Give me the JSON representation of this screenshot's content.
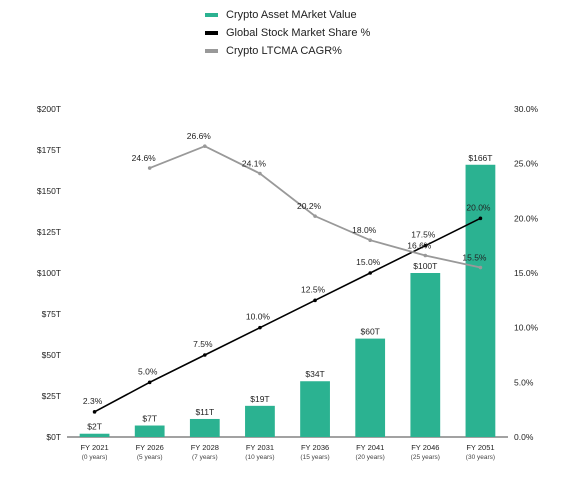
{
  "chart_data": {
    "type": "bar",
    "categories": [
      "FY 2021",
      "FY 2026",
      "FY 2028",
      "FY 2031",
      "FY 2036",
      "FY 2041",
      "FY 2046",
      "FY 2051"
    ],
    "category_sublabels": [
      "(0 years)",
      "(5 years)",
      "(7 years)",
      "(10 years)",
      "(15 years)",
      "(20 years)",
      "(25 years)",
      "(30 years)"
    ],
    "series": [
      {
        "name": "Crypto Asset MArket Value",
        "kind": "bar",
        "axis": "left",
        "color": "#2bb291",
        "values": [
          2,
          7,
          11,
          19,
          34,
          60,
          100,
          166
        ],
        "labels": [
          "$2T",
          "$7T",
          "$11T",
          "$19T",
          "$34T",
          "$60T",
          "$100T",
          "$166T"
        ]
      },
      {
        "name": "Global Stock Market Share %",
        "kind": "line",
        "axis": "right",
        "color": "#000000",
        "values": [
          2.3,
          5.0,
          7.5,
          10.0,
          12.5,
          15.0,
          17.5,
          20.0
        ],
        "labels": [
          "2.3%",
          "5.0%",
          "7.5%",
          "10.0%",
          "12.5%",
          "15.0%",
          "17.5%",
          "20.0%"
        ]
      },
      {
        "name": "Crypto LTCMA CAGR%",
        "kind": "line",
        "axis": "right",
        "color": "#999999",
        "values": [
          null,
          24.6,
          26.6,
          24.1,
          20.2,
          18.0,
          16.6,
          15.5
        ],
        "labels": [
          null,
          "24.6%",
          "26.6%",
          "24.1%",
          "20.2%",
          "18.0%",
          "16.6%",
          "15.5%"
        ]
      }
    ],
    "y_left": {
      "lim": [
        0,
        200
      ],
      "ticks": [
        0,
        25,
        50,
        75,
        100,
        125,
        150,
        175,
        200
      ],
      "tick_labels": [
        "$0T",
        "$25T",
        "$50T",
        "$75T",
        "$100T",
        "$125T",
        "$150T",
        "$175T",
        "$200T"
      ]
    },
    "y_right": {
      "lim": [
        0,
        30
      ],
      "ticks": [
        0,
        5,
        10,
        15,
        20,
        25,
        30
      ],
      "tick_labels": [
        "0.0%",
        "5.0%",
        "10.0%",
        "15.0%",
        "20.0%",
        "25.0%",
        "30.0%"
      ]
    },
    "grid": false,
    "legend_position": "top-center"
  }
}
